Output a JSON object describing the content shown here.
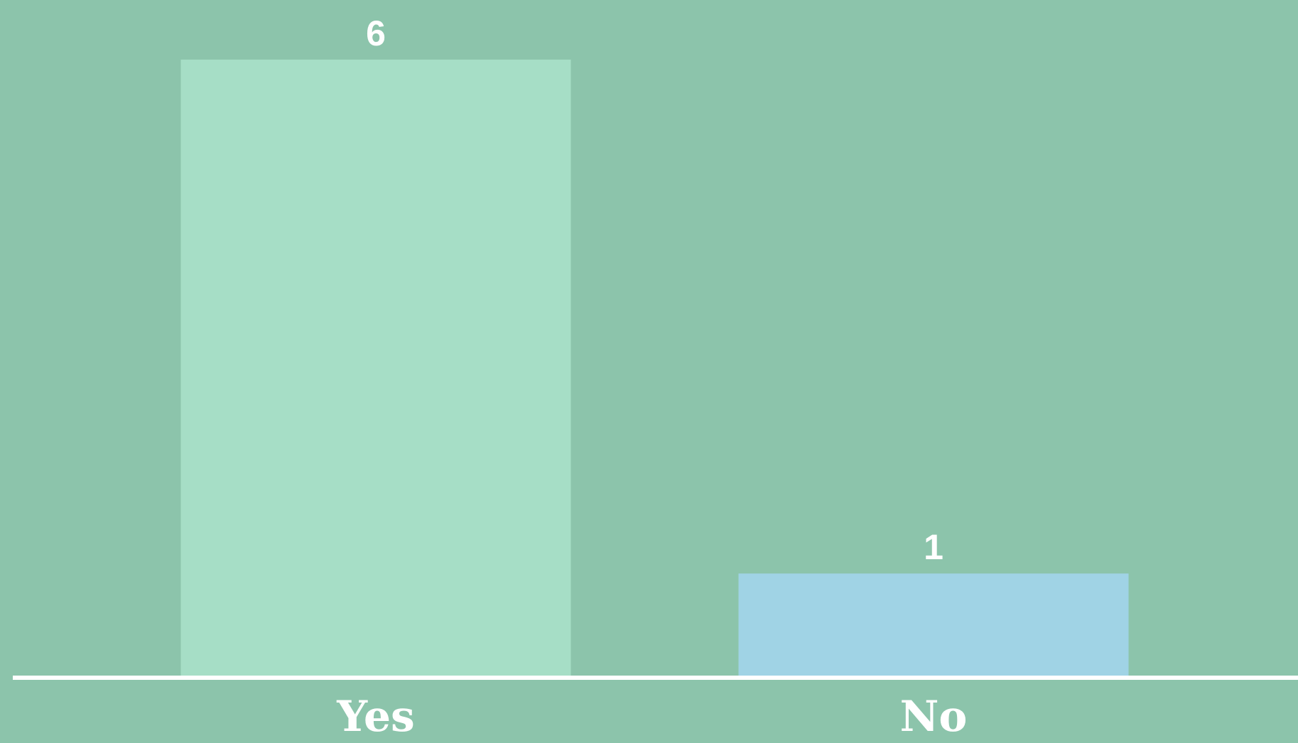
{
  "chart_data": {
    "type": "bar",
    "categories": [
      "Yes",
      "No"
    ],
    "values": [
      6,
      1
    ],
    "value_labels": [
      "6",
      "1"
    ],
    "title": "",
    "xlabel": "",
    "ylabel": "",
    "ylim": [
      0,
      6
    ],
    "grid": false,
    "legend": "none",
    "colors": {
      "background": "#8cc4ab",
      "bars": [
        "#a6dec6",
        "#a0d3e5"
      ],
      "axis": "#ffffff",
      "text": "#ffffff"
    }
  }
}
